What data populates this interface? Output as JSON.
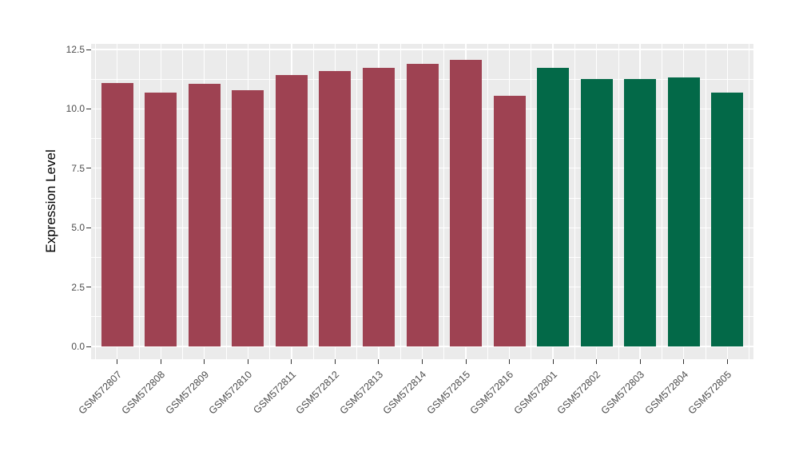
{
  "chart_data": {
    "type": "bar",
    "title": "",
    "xlabel": "",
    "ylabel": "Expression Level",
    "categories": [
      "GSM572807",
      "GSM572808",
      "GSM572809",
      "GSM572810",
      "GSM572811",
      "GSM572812",
      "GSM572813",
      "GSM572814",
      "GSM572815",
      "GSM572816",
      "GSM572801",
      "GSM572802",
      "GSM572803",
      "GSM572804",
      "GSM572805"
    ],
    "values": [
      11.1,
      10.68,
      11.05,
      10.8,
      11.44,
      11.6,
      11.73,
      11.9,
      12.07,
      10.55,
      11.74,
      11.27,
      11.27,
      11.31,
      10.7
    ],
    "bar_colors": [
      "#9E4252",
      "#9E4252",
      "#9E4252",
      "#9E4252",
      "#9E4252",
      "#9E4252",
      "#9E4252",
      "#9E4252",
      "#9E4252",
      "#9E4252",
      "#036948",
      "#036948",
      "#036948",
      "#036948",
      "#036948"
    ],
    "y_tick_labels": [
      "0.0",
      "2.5",
      "5.0",
      "7.5",
      "10.0",
      "12.5"
    ],
    "y_tick_values": [
      0,
      2.5,
      5,
      7.5,
      10,
      12.5
    ],
    "y_minor_values": [
      1.25,
      3.75,
      6.25,
      8.75,
      11.25
    ],
    "ylim": [
      0,
      12.5
    ],
    "grid": "on",
    "legend": "none",
    "colors": {
      "maroon_group": "#9E4252",
      "green_group": "#036948",
      "panel_background": "#EBEBEB",
      "gridline": "#FFFFFF",
      "axis_text": "#4D4D4D"
    }
  }
}
